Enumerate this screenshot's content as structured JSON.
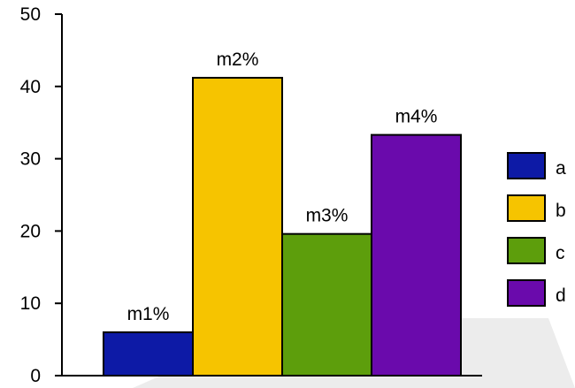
{
  "chart_data": {
    "type": "bar",
    "categories": [
      "a",
      "b",
      "c",
      "d"
    ],
    "values": [
      6,
      41.2,
      19.6,
      33.3
    ],
    "data_labels": [
      "m1%",
      "m2%",
      "m3%",
      "m4%"
    ],
    "colors": [
      "#0d1aa6",
      "#f6c400",
      "#5d9e0c",
      "#6a0aac"
    ],
    "title": "",
    "xlabel": "",
    "ylabel": "",
    "ylim": [
      0,
      50
    ],
    "yticks": [
      "0",
      "10",
      "20",
      "30",
      "40",
      "50"
    ],
    "grid": false,
    "legend": {
      "placement": "right",
      "entries": [
        "a",
        "b",
        "c",
        "d"
      ]
    }
  }
}
